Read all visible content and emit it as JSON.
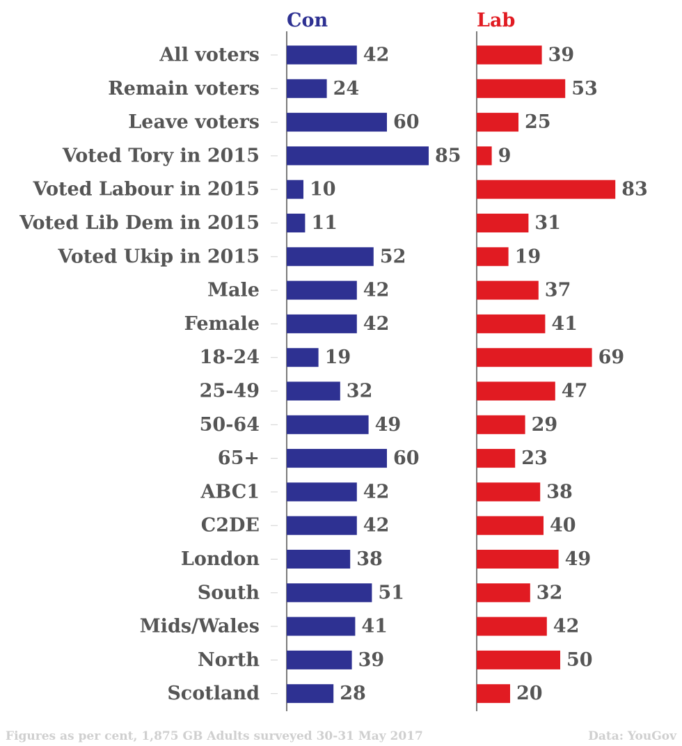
{
  "chart_data": {
    "type": "bar",
    "orientation": "horizontal",
    "categories": [
      "All voters",
      "Remain voters",
      "Leave voters",
      "Voted Tory in 2015",
      "Voted Labour in 2015",
      "Voted Lib Dem in 2015",
      "Voted Ukip in 2015",
      "Male",
      "Female",
      "18-24",
      "25-49",
      "50-64",
      "65+",
      "ABC1",
      "C2DE",
      "London",
      "South",
      "Mids/Wales",
      "North",
      "Scotland"
    ],
    "series": [
      {
        "name": "Con",
        "color": "#2e3192",
        "values": [
          42,
          24,
          60,
          85,
          10,
          11,
          52,
          42,
          42,
          19,
          32,
          49,
          60,
          42,
          42,
          38,
          51,
          41,
          39,
          28
        ]
      },
      {
        "name": "Lab",
        "color": "#e11b22",
        "values": [
          39,
          53,
          25,
          9,
          83,
          31,
          19,
          37,
          41,
          69,
          47,
          29,
          23,
          38,
          40,
          49,
          32,
          42,
          50,
          20
        ]
      }
    ],
    "note": "Figures as per cent, 1,875 GB Adults surveyed 30-31 May 2017",
    "source": "Data: YouGov"
  }
}
